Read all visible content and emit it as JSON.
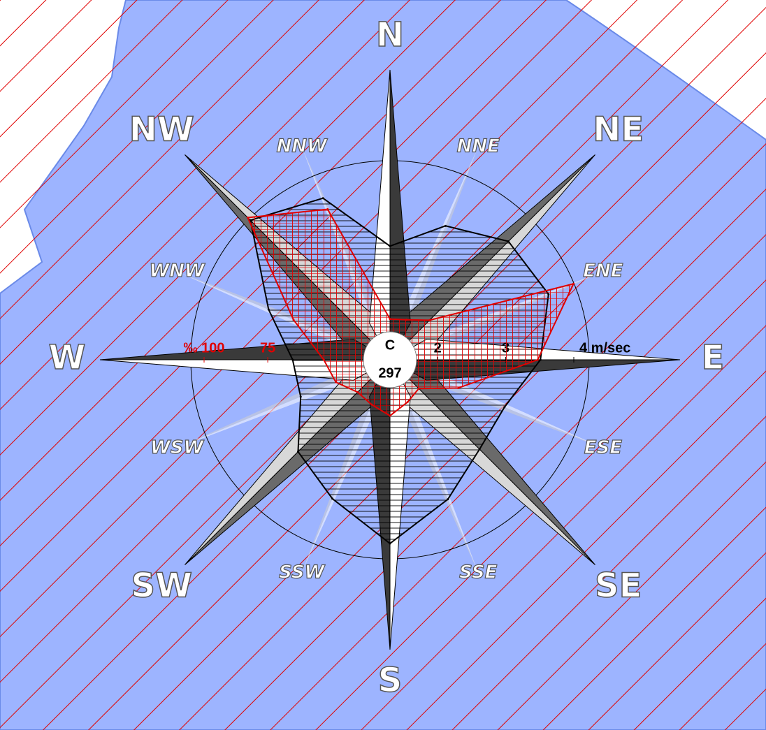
{
  "chart_data": {
    "type": "wind-rose",
    "categories": [
      "N",
      "NNE",
      "NE",
      "ENE",
      "E",
      "ESE",
      "SE",
      "SSE",
      "S",
      "SSW",
      "SW",
      "WSW",
      "W",
      "WNW",
      "NW",
      "NNW"
    ],
    "calm": {
      "label": "C",
      "value": 297
    },
    "series": [
      {
        "color": "#000000",
        "values": [
          2.97,
          3.43,
          3.76,
          3.82,
          3.51,
          3.12,
          3.16,
          3.52,
          4.0,
          3.51,
          3.21,
          2.72,
          2.73,
          3.23,
          4.2,
          3.87
        ],
        "rlim": [
          1.3,
          4
        ],
        "rticks": [
          2,
          3,
          {
            "value": 4,
            "label": "4 m/sec"
          }
        ]
      },
      {
        "color": "#e00000",
        "values": [
          43,
          44,
          49,
          105,
          85,
          56,
          43,
          45,
          49,
          46,
          45,
          50,
          53,
          68,
          106,
          91
        ],
        "rlim": [
          27,
          100
        ],
        "rticks": [
          75,
          {
            "value": 100,
            "label": "‰ 100"
          }
        ]
      }
    ]
  }
}
